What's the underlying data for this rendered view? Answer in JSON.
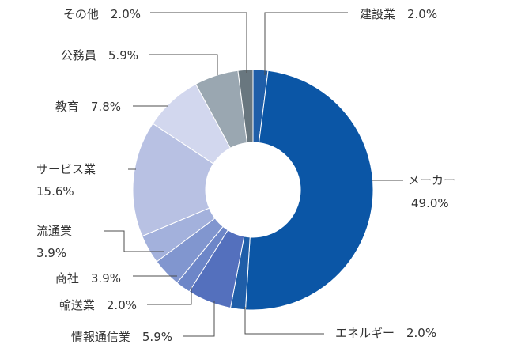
{
  "chart_data": {
    "type": "pie",
    "variant": "donut",
    "unit": "%",
    "slices": [
      {
        "label": "建設業",
        "value": 2.0,
        "color": "#1f5ea8",
        "label_lines": [
          "建設業　2.0%"
        ]
      },
      {
        "label": "メーカー",
        "value": 49.0,
        "color": "#0b56a6",
        "label_lines": [
          "メーカー",
          "49.0%"
        ]
      },
      {
        "label": "エネルギー",
        "value": 2.0,
        "color": "#1f5ea8",
        "label_lines": [
          "エネルギー　2.0%"
        ]
      },
      {
        "label": "情報通信業",
        "value": 5.9,
        "color": "#5470bd",
        "label_lines": [
          "情報通信業　5.9%"
        ]
      },
      {
        "label": "輸送業",
        "value": 2.0,
        "color": "#6d86c8",
        "label_lines": [
          "輸送業　2.0%"
        ]
      },
      {
        "label": "商社",
        "value": 3.9,
        "color": "#8196cf",
        "label_lines": [
          "商社　3.9%"
        ]
      },
      {
        "label": "流通業",
        "value": 3.9,
        "color": "#a3b1dc",
        "label_lines": [
          "流通業",
          "3.9%"
        ]
      },
      {
        "label": "サービス業",
        "value": 15.6,
        "color": "#b8c1e3",
        "label_lines": [
          "サービス業",
          "15.6%"
        ]
      },
      {
        "label": "教育",
        "value": 7.8,
        "color": "#d2d7ee",
        "label_lines": [
          "教育　7.8%"
        ]
      },
      {
        "label": "公務員",
        "value": 5.9,
        "color": "#9aa7b1",
        "label_lines": [
          "公務員　5.9%"
        ]
      },
      {
        "label": "その他",
        "value": 2.0,
        "color": "#69777f",
        "label_lines": [
          "その他　2.0%"
        ]
      }
    ]
  }
}
